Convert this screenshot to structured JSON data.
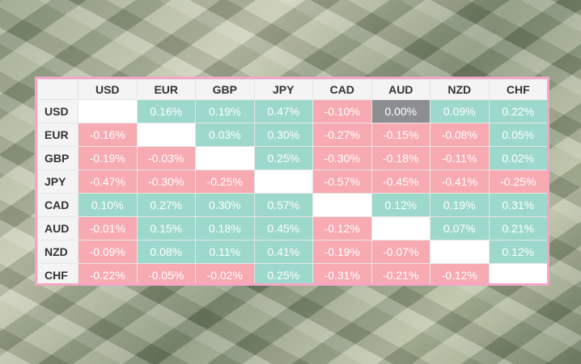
{
  "table": {
    "columns": [
      "USD",
      "EUR",
      "GBP",
      "JPY",
      "CAD",
      "AUD",
      "NZD",
      "CHF"
    ],
    "colors": {
      "positive": "#9dd8cc",
      "negative": "#f7aab2",
      "zero": "#8d8e92",
      "empty": "#ffffff"
    },
    "rows": [
      {
        "label": "USD",
        "cells": [
          null,
          "0.16%",
          "0.19%",
          "0.47%",
          "-0.10%",
          "0.00%",
          "0.09%",
          "0.22%"
        ]
      },
      {
        "label": "EUR",
        "cells": [
          "-0.16%",
          null,
          "0.03%",
          "0.30%",
          "-0.27%",
          "-0.15%",
          "-0.08%",
          "0.05%"
        ]
      },
      {
        "label": "GBP",
        "cells": [
          "-0.19%",
          "-0.03%",
          null,
          "0.25%",
          "-0.30%",
          "-0.18%",
          "-0.11%",
          "0.02%"
        ]
      },
      {
        "label": "JPY",
        "cells": [
          "-0.47%",
          "-0.30%",
          "-0.25%",
          null,
          "-0.57%",
          "-0.45%",
          "-0.41%",
          "-0.25%"
        ]
      },
      {
        "label": "CAD",
        "cells": [
          "0.10%",
          "0.27%",
          "0.30%",
          "0.57%",
          null,
          "0.12%",
          "0.19%",
          "0.31%"
        ]
      },
      {
        "label": "AUD",
        "cells": [
          "-0.01%",
          "0.15%",
          "0.18%",
          "0.45%",
          "-0.12%",
          null,
          "0.07%",
          "0.21%"
        ]
      },
      {
        "label": "NZD",
        "cells": [
          "-0.09%",
          "0.08%",
          "0.11%",
          "0.41%",
          "-0.19%",
          "-0.07%",
          null,
          "0.12%"
        ]
      },
      {
        "label": "CHF",
        "cells": [
          "-0.22%",
          "-0.05%",
          "-0.02%",
          "0.25%",
          "-0.31%",
          "-0.21%",
          "-0.12%",
          null
        ]
      }
    ]
  }
}
